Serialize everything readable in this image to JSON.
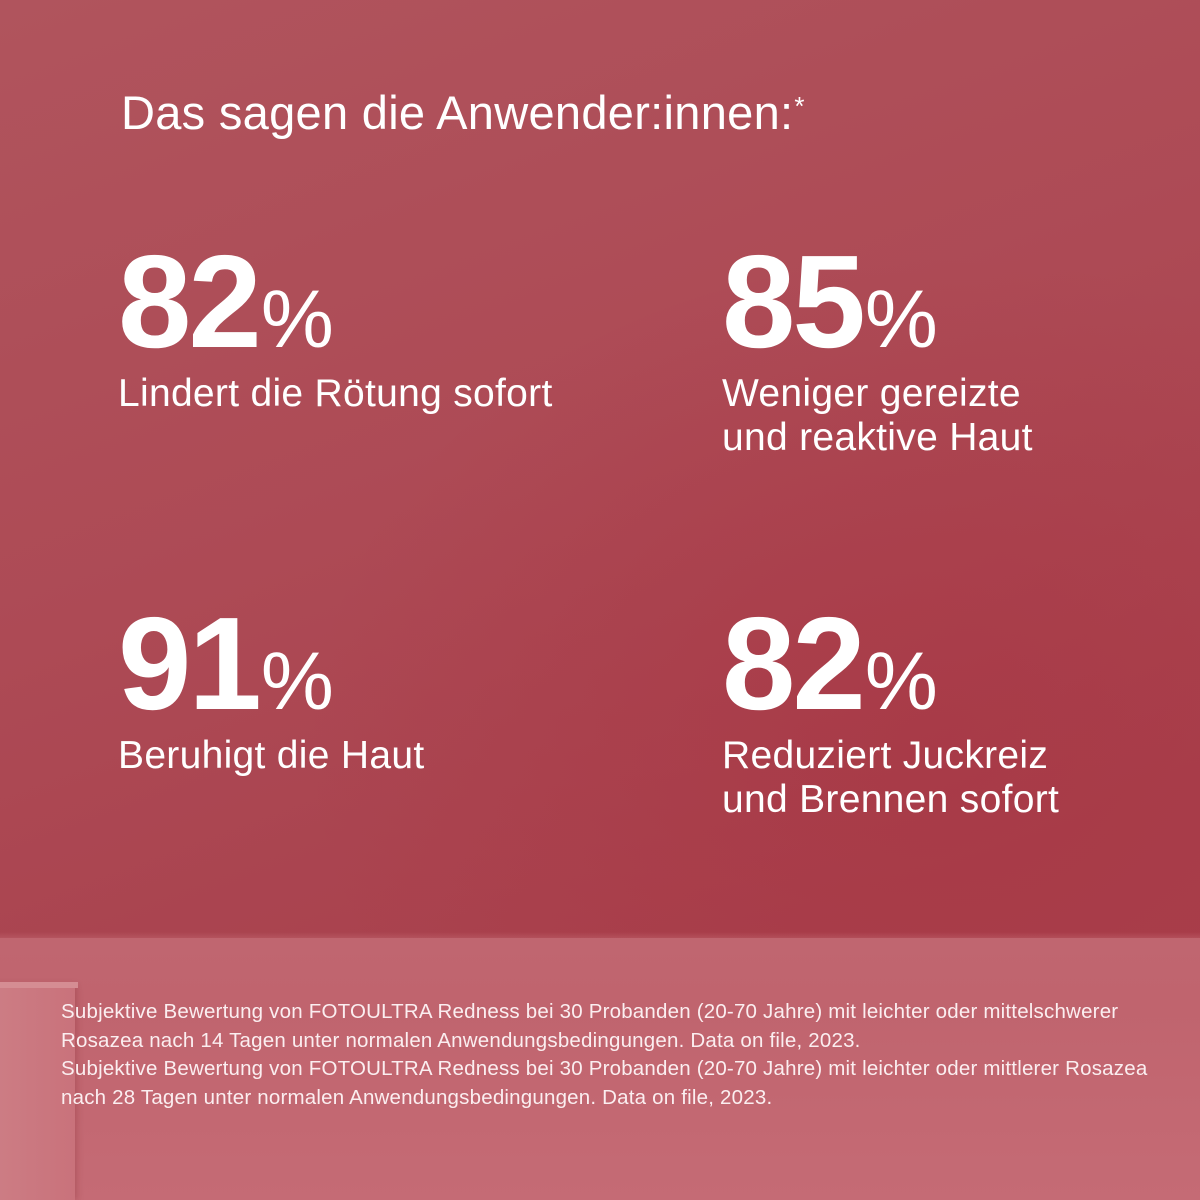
{
  "headline": {
    "text": "Das sagen die Anwender:innen:",
    "marker": "*"
  },
  "stats": [
    {
      "number": "82",
      "unit": "%",
      "label_line1": "Lindert die Rötung sofort",
      "label_line2": ""
    },
    {
      "number": "85",
      "unit": "%",
      "label_line1": "Weniger gereizte",
      "label_line2": "und reaktive Haut"
    },
    {
      "number": "91",
      "unit": "%",
      "label_line1": "Beruhigt die Haut",
      "label_line2": ""
    },
    {
      "number": "82",
      "unit": "%",
      "label_line1": "Reduziert Juckreiz",
      "label_line2": "und Brennen sofort"
    }
  ],
  "footnotes": [
    "Subjektive Bewertung von FOTOULTRA Redness bei 30 Probanden (20-70 Jahre) mit leichter oder mittelschwerer Rosazea nach 14 Tagen unter normalen Anwendungsbedingungen. Data on file, 2023.",
    "Subjektive Bewertung von FOTOULTRA Redness bei 30 Probanden (20-70 Jahre) mit leichter oder mittlerer Rosazea nach 28 Tagen unter normalen Anwendungsbedingungen. Data on file, 2023."
  ],
  "colors": {
    "background": "#ad4a55",
    "text": "#ffffff"
  }
}
